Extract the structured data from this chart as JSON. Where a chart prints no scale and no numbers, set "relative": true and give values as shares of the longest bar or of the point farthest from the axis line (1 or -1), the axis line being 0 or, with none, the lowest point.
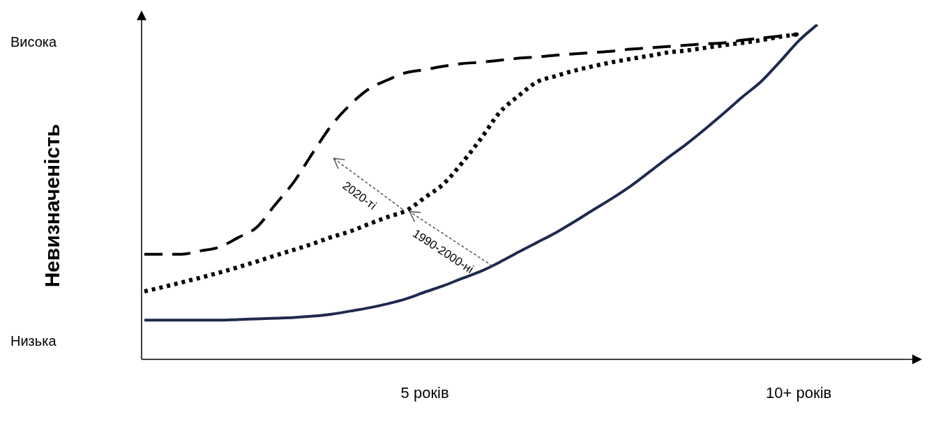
{
  "chart_data": {
    "type": "line",
    "ylabel": "Невизначеність",
    "relative": true,
    "categories": [
      null,
      null,
      null,
      null,
      null,
      null,
      null,
      null,
      null,
      null,
      null,
      null,
      null,
      null,
      null,
      "5 років",
      null,
      null,
      null,
      null,
      null,
      null,
      null,
      null,
      null,
      null,
      null,
      null,
      null,
      null,
      null,
      null,
      null,
      null,
      null,
      "10+ років",
      null,
      null,
      null,
      null,
      null,
      null
    ],
    "grid": false,
    "legend": false,
    "marker": "none",
    "series": [
      {
        "color": "#000000",
        "line_style": "dashed",
        "values": [
          0.314,
          0.314,
          0.314,
          0.324,
          0.335,
          0.363,
          0.394,
          0.462,
          0.53,
          0.616,
          0.698,
          0.76,
          0.807,
          0.834,
          0.856,
          0.865,
          0.875,
          0.883,
          0.887,
          0.893,
          0.899,
          0.903,
          0.908,
          0.912,
          0.916,
          0.92,
          0.926,
          0.93,
          0.934,
          0.938,
          0.942,
          0.945,
          0.953,
          0.959,
          0.965,
          0.971,
          null,
          null,
          null,
          null,
          null,
          null
        ]
      },
      {
        "color": "#000000",
        "line_style": "dotted",
        "values": [
          0.203,
          0.216,
          0.23,
          0.244,
          0.259,
          0.275,
          0.292,
          0.31,
          0.327,
          0.345,
          0.365,
          0.382,
          0.404,
          0.425,
          0.444,
          0.483,
          0.524,
          0.587,
          0.659,
          0.737,
          0.786,
          0.828,
          0.846,
          0.862,
          0.875,
          0.887,
          0.897,
          0.906,
          0.916,
          0.922,
          0.93,
          0.938,
          0.945,
          0.953,
          0.963,
          0.971,
          null,
          null,
          null,
          null,
          null,
          null
        ]
      },
      {
        "color": "#1f2a4f",
        "line_style": "solid",
        "values": [
          0.117,
          0.117,
          0.117,
          0.117,
          0.117,
          0.119,
          0.121,
          0.123,
          0.125,
          0.129,
          0.135,
          0.144,
          0.154,
          0.166,
          0.181,
          0.201,
          0.22,
          0.242,
          0.263,
          0.29,
          0.32,
          0.349,
          0.378,
          0.411,
          0.446,
          0.48,
          0.517,
          0.559,
          0.602,
          0.643,
          0.688,
          0.735,
          0.784,
          0.83,
          0.889,
          0.951,
          1.0,
          null,
          null,
          null,
          null,
          null
        ]
      }
    ],
    "annotations": [
      "Висока",
      "Низька",
      "2020-ті",
      "1990-2000-ні"
    ]
  }
}
